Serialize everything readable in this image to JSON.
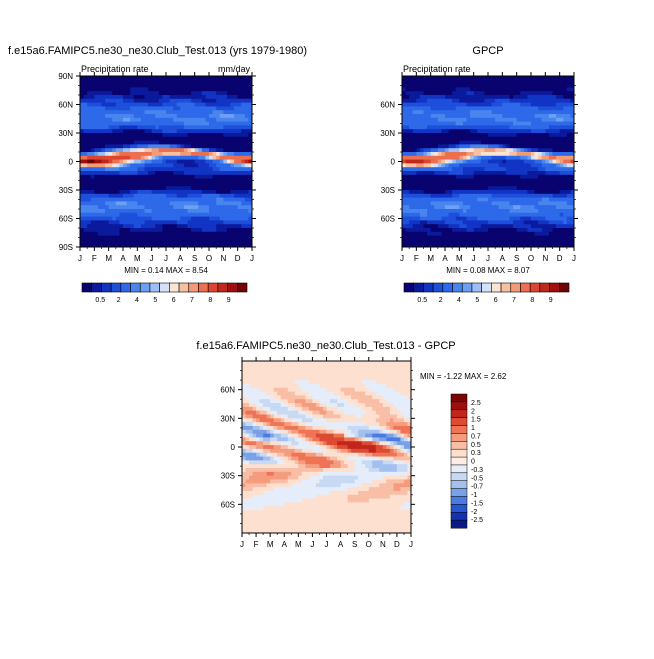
{
  "panels": [
    {
      "title": "f.e15a6.FAMIPC5.ne30_ne30.Club_Test.013 (yrs 1979-1980)",
      "left_string": "Precipitation rate",
      "right_string": "mm/day",
      "stats": "MIN =  0.14 MAX =  8.54",
      "y_ticks": [
        "90N",
        "60N",
        "30N",
        "0",
        "30S",
        "60S",
        "90S"
      ],
      "x_ticks": [
        "J",
        "F",
        "M",
        "A",
        "M",
        "J",
        "J",
        "A",
        "S",
        "O",
        "N",
        "D",
        "J"
      ],
      "colorbar_labels": [
        "0.5",
        "2",
        "4",
        "5",
        "6",
        "7",
        "8",
        "9"
      ]
    },
    {
      "title": "GPCP",
      "left_string": "Precipitation rate",
      "right_string": "",
      "stats": "MIN =  0.08 MAX =  8.07",
      "y_ticks": [
        "60N",
        "30N",
        "0",
        "30S",
        "60S"
      ],
      "x_ticks": [
        "J",
        "F",
        "M",
        "A",
        "M",
        "J",
        "J",
        "A",
        "S",
        "O",
        "N",
        "D",
        "J"
      ],
      "colorbar_labels": [
        "0.5",
        "2",
        "4",
        "5",
        "6",
        "7",
        "8",
        "9"
      ]
    },
    {
      "title": "f.e15a6.FAMIPC5.ne30_ne30.Club_Test.013 - GPCP",
      "stats": "MIN = -1.22 MAX =  2.62",
      "y_ticks": [
        "60N",
        "30N",
        "0",
        "30S",
        "60S"
      ],
      "x_ticks": [
        "J",
        "F",
        "M",
        "A",
        "M",
        "J",
        "J",
        "A",
        "S",
        "O",
        "N",
        "D",
        "J"
      ],
      "colorbar_labels": [
        "2.5",
        "2",
        "1.5",
        "1",
        "0.7",
        "0.5",
        "0.3",
        "0",
        "-0.3",
        "-0.5",
        "-0.7",
        "-1",
        "-1.5",
        "-2",
        "-2.5"
      ]
    }
  ],
  "colors": {
    "abs_palette": [
      "#08036e",
      "#0b1a9c",
      "#1234c4",
      "#1d4fdb",
      "#2d69e8",
      "#4885ef",
      "#6da0f2",
      "#9cc0f5",
      "#d3e2f8",
      "#fce4d4",
      "#f8bfa1",
      "#f39a77",
      "#ec704f",
      "#dc4631",
      "#c0281c",
      "#a10f10",
      "#6e0606"
    ],
    "diff_palette": [
      "#7a0406",
      "#a00d0d",
      "#c1251c",
      "#dc4a32",
      "#ef7456",
      "#f69c7e",
      "#f9bea6",
      "#fde0d0",
      "#fdeee4",
      "#e4edf9",
      "#c7d9f3",
      "#a3c0ee",
      "#7aa1e7",
      "#4c7be0",
      "#2a55d1",
      "#1432b0",
      "#0b1a88"
    ]
  },
  "chart_data": [
    {
      "type": "heatmap",
      "title": "f.e15a6.FAMIPC5.ne30_ne30.Club_Test.013 (yrs 1979-1980)",
      "variable": "Precipitation rate",
      "units": "mm/day",
      "x": [
        "J",
        "F",
        "M",
        "A",
        "M",
        "J",
        "J",
        "A",
        "S",
        "O",
        "N",
        "D",
        "J"
      ],
      "y_range": [
        -90,
        90
      ],
      "min": 0.14,
      "max": 8.54,
      "contour_levels": [
        0.5,
        1,
        1.5,
        2,
        2.5,
        3,
        3.5,
        4,
        4.5,
        5,
        5.5,
        6,
        6.5,
        7,
        7.5,
        8,
        8.5,
        9
      ],
      "notes_itcz_peak_lat_by_month": [
        2,
        2,
        3,
        5,
        8,
        10,
        11,
        11,
        10,
        8,
        5,
        3,
        2
      ]
    },
    {
      "type": "heatmap",
      "title": "GPCP",
      "variable": "Precipitation rate",
      "x": [
        "J",
        "F",
        "M",
        "A",
        "M",
        "J",
        "J",
        "A",
        "S",
        "O",
        "N",
        "D",
        "J"
      ],
      "y_range": [
        -90,
        90
      ],
      "min": 0.08,
      "max": 8.07,
      "contour_levels": [
        0.5,
        1,
        1.5,
        2,
        2.5,
        3,
        3.5,
        4,
        4.5,
        5,
        5.5,
        6,
        6.5,
        7,
        7.5,
        8,
        8.5,
        9
      ]
    },
    {
      "type": "heatmap",
      "title": "f.e15a6.FAMIPC5.ne30_ne30.Club_Test.013 - GPCP",
      "x": [
        "J",
        "F",
        "M",
        "A",
        "M",
        "J",
        "J",
        "A",
        "S",
        "O",
        "N",
        "D",
        "J"
      ],
      "y_range": [
        -90,
        90
      ],
      "min": -1.22,
      "max": 2.62,
      "contour_levels": [
        -2.5,
        -2,
        -1.5,
        -1,
        -0.7,
        -0.5,
        -0.3,
        0,
        0.3,
        0.5,
        0.7,
        1,
        1.5,
        2,
        2.5
      ]
    }
  ]
}
